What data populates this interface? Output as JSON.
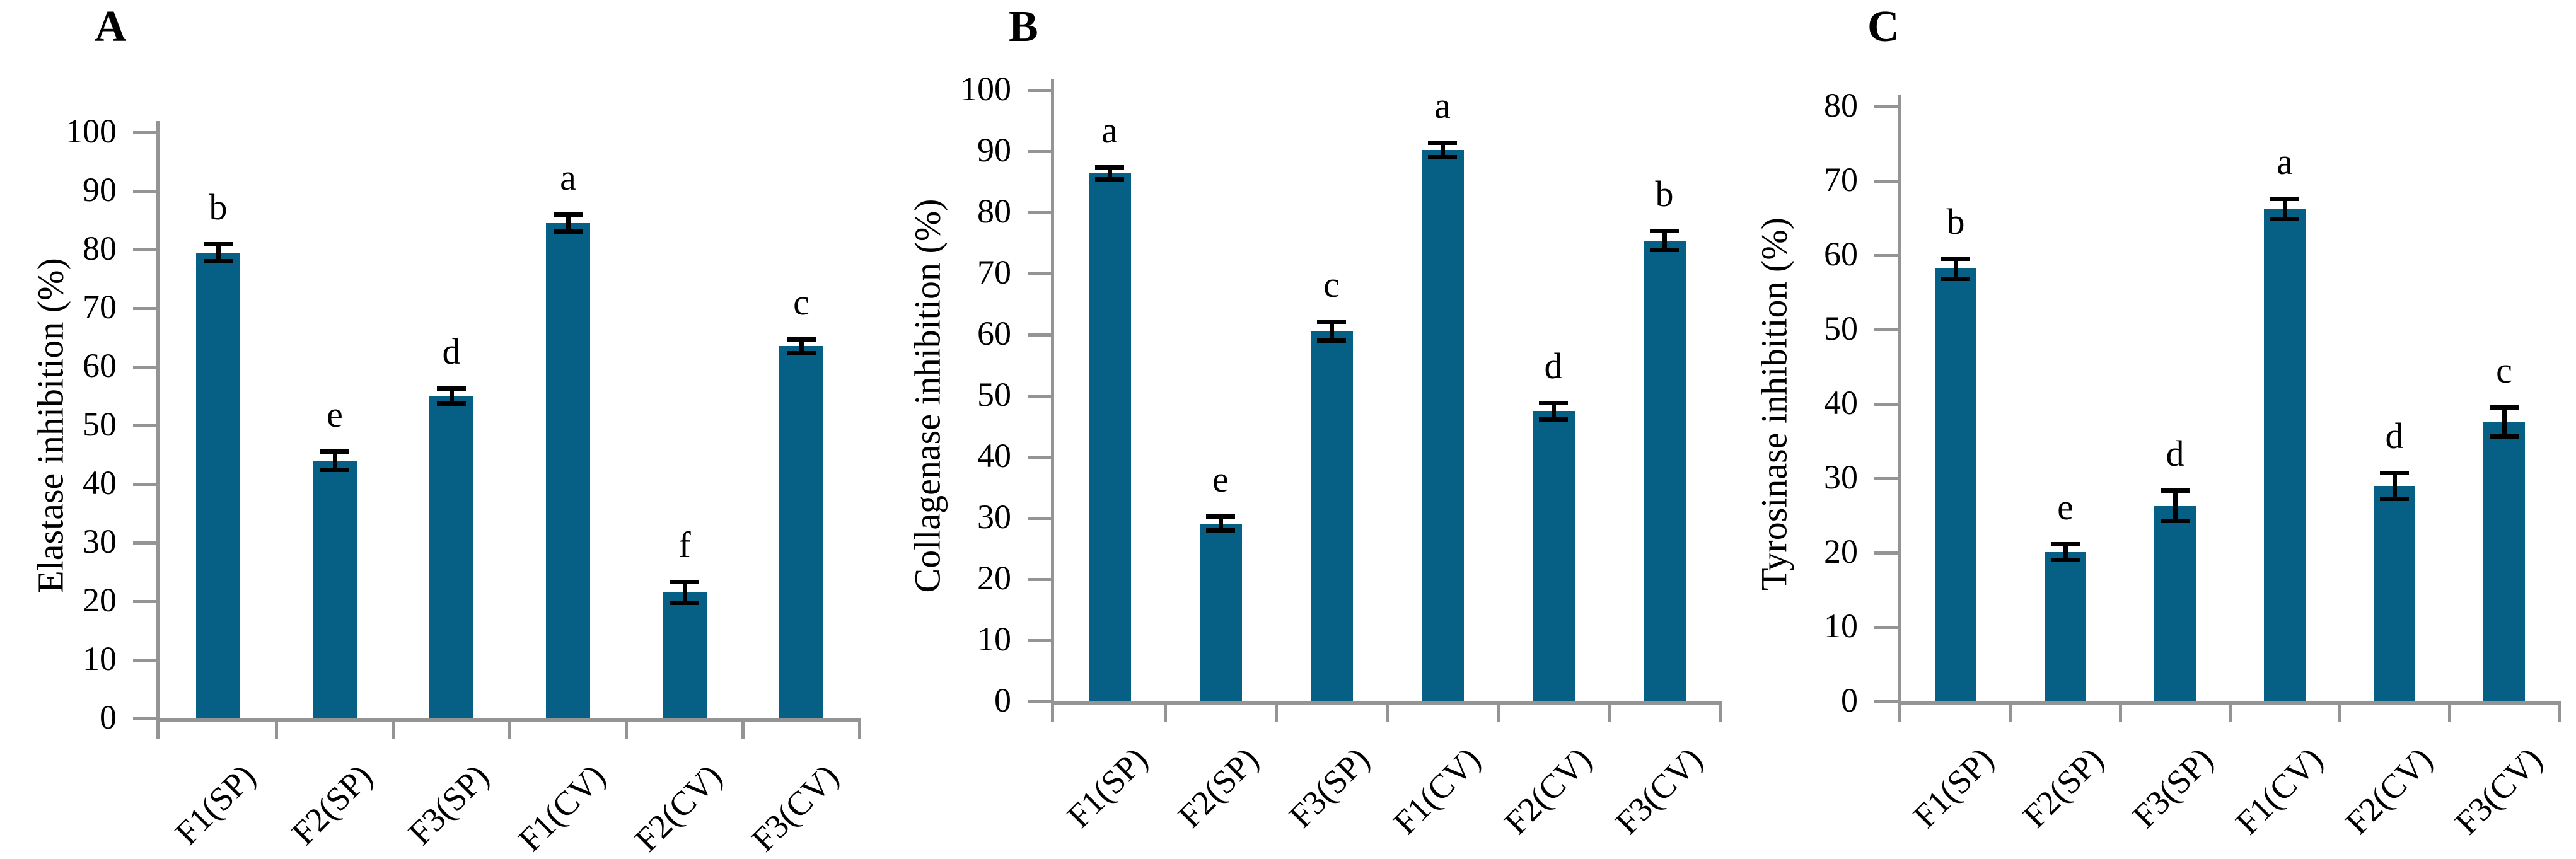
{
  "colors": {
    "bar": "#066085",
    "axis": "#949494",
    "error_bar": "#000000",
    "text": "#000000",
    "background": "#ffffff"
  },
  "chart_data": [
    {
      "type": "bar",
      "panel_label": "A",
      "title": "",
      "xlabel": "",
      "ylabel": "Elastase inhibition (%)",
      "ylim": [
        0,
        100
      ],
      "ytick_step": 10,
      "grid": false,
      "legend_position": "none",
      "bar_color": "#066085",
      "categories": [
        "F1(SP)",
        "F2(SP)",
        "F3(SP)",
        "F1(CV)",
        "F2(CV)",
        "F3(CV)"
      ],
      "values": [
        79.5,
        44.0,
        55.0,
        84.5,
        21.5,
        63.5
      ],
      "error_bars": [
        1.5,
        1.6,
        1.3,
        1.5,
        1.8,
        1.2
      ],
      "sig_letters": [
        "b",
        "e",
        "d",
        "a",
        "f",
        "c"
      ]
    },
    {
      "type": "bar",
      "panel_label": "B",
      "title": "",
      "xlabel": "",
      "ylabel": "Collagenase inhibition (%)",
      "ylim": [
        0,
        100
      ],
      "ytick_step": 10,
      "grid": false,
      "legend_position": "none",
      "bar_color": "#066085",
      "categories": [
        "F1(SP)",
        "F2(SP)",
        "F3(SP)",
        "F1(CV)",
        "F2(CV)",
        "F3(CV)"
      ],
      "values": [
        86.4,
        29.1,
        60.6,
        90.2,
        47.5,
        75.4
      ],
      "error_bars": [
        1.0,
        1.2,
        1.6,
        1.2,
        1.4,
        1.6
      ],
      "sig_letters": [
        "a",
        "e",
        "c",
        "a",
        "d",
        "b"
      ]
    },
    {
      "type": "bar",
      "panel_label": "C",
      "title": "",
      "xlabel": "",
      "ylabel": "Tyrosinase inhibition (%)",
      "ylim": [
        0,
        80
      ],
      "ytick_step": 10,
      "grid": false,
      "legend_position": "none",
      "bar_color": "#066085",
      "categories": [
        "F1(SP)",
        "F2(SP)",
        "F3(SP)",
        "F1(CV)",
        "F2(CV)",
        "F3(CV)"
      ],
      "values": [
        58.2,
        20.1,
        26.3,
        66.2,
        29.0,
        37.6
      ],
      "error_bars": [
        1.4,
        1.1,
        2.1,
        1.4,
        1.8,
        2.0
      ],
      "sig_letters": [
        "b",
        "e",
        "d",
        "a",
        "d",
        "c"
      ]
    }
  ]
}
